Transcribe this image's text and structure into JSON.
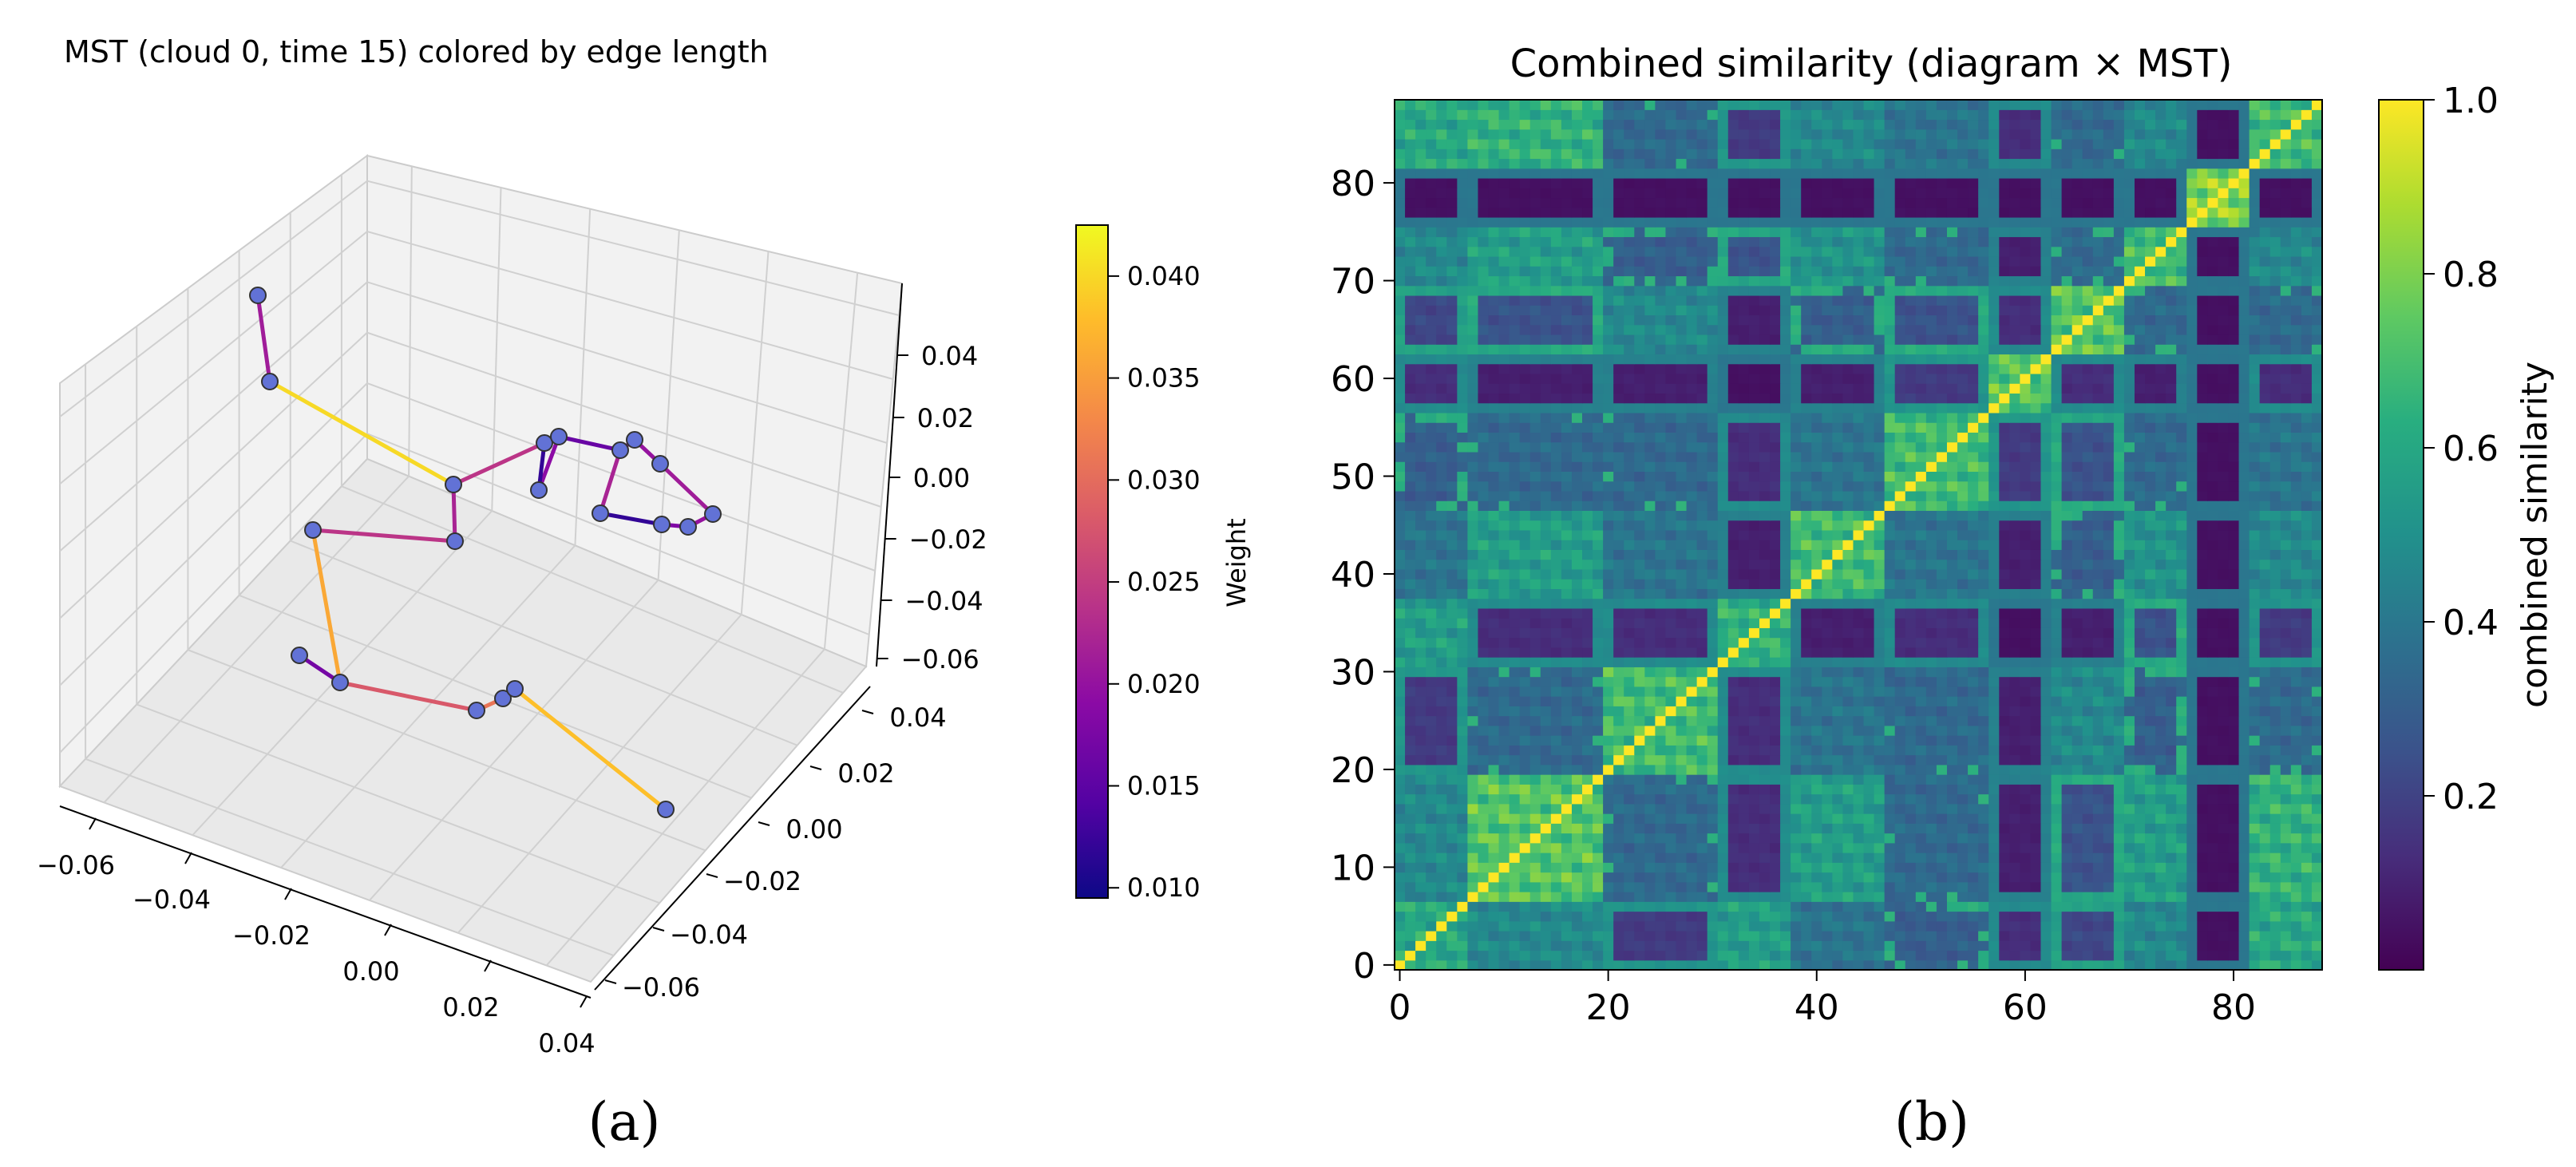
{
  "panels": {
    "a": {
      "label": "(a)",
      "chart_data": {
        "type": "scatter",
        "title": "MST (cloud 0, time 15) colored by edge length",
        "x_ticks": [
          "−0.06",
          "−0.04",
          "−0.02",
          "0.00",
          "0.02",
          "0.04"
        ],
        "y_ticks": [
          "−0.06",
          "−0.04",
          "−0.02",
          "0.00",
          "0.02",
          "0.04"
        ],
        "z_ticks": [
          "−0.06",
          "−0.04",
          "−0.02",
          "0.00",
          "0.02",
          "0.04"
        ],
        "colorbar": {
          "label": "Weight",
          "colormap": "plasma",
          "range": [
            0.0095,
            0.0425
          ],
          "ticks": [
            "0.010",
            "0.015",
            "0.020",
            "0.025",
            "0.030",
            "0.035",
            "0.040"
          ],
          "tick_values": [
            0.01,
            0.015,
            0.02,
            0.025,
            0.03,
            0.035,
            0.04
          ]
        },
        "node_color": "#6272d6",
        "grid": true
      }
    },
    "b": {
      "label": "(b)",
      "chart_data": {
        "type": "heatmap",
        "title": "Combined similarity (diagram × MST)",
        "matrix_size": 89,
        "x_ticks": [
          "0",
          "20",
          "40",
          "60",
          "80"
        ],
        "x_tick_values": [
          0,
          20,
          40,
          60,
          80
        ],
        "y_ticks": [
          "0",
          "10",
          "20",
          "30",
          "40",
          "50",
          "60",
          "70",
          "80"
        ],
        "y_tick_values": [
          0,
          10,
          20,
          30,
          40,
          50,
          60,
          70,
          80
        ],
        "xlim": [
          -0.5,
          88.5
        ],
        "ylim": [
          -0.5,
          88.5
        ],
        "colormap": "viridis",
        "colorbar": {
          "label": "combined similarity",
          "range": [
            0.0,
            1.0
          ],
          "ticks": [
            "0.2",
            "0.4",
            "0.6",
            "0.8",
            "1.0"
          ],
          "tick_values": [
            0.2,
            0.4,
            0.6,
            0.8,
            1.0
          ]
        },
        "diagonal_value": 1.0,
        "segments": [
          [
            0,
            6
          ],
          [
            7,
            19
          ],
          [
            20,
            30
          ],
          [
            31,
            37
          ],
          [
            38,
            46
          ],
          [
            47,
            56
          ],
          [
            57,
            62
          ],
          [
            63,
            69
          ],
          [
            70,
            75
          ],
          [
            76,
            81
          ],
          [
            82,
            88
          ]
        ],
        "segment_similarity": [
          [
            0.7,
            0.55,
            0.2,
            0.65,
            0.45,
            0.35,
            0.15,
            0.25,
            0.55,
            0.05,
            0.7
          ],
          [
            0.55,
            0.85,
            0.4,
            0.15,
            0.65,
            0.4,
            0.1,
            0.3,
            0.65,
            0.05,
            0.75
          ],
          [
            0.2,
            0.4,
            0.8,
            0.15,
            0.45,
            0.4,
            0.1,
            0.55,
            0.35,
            0.05,
            0.4
          ],
          [
            0.65,
            0.15,
            0.15,
            0.75,
            0.1,
            0.15,
            0.05,
            0.1,
            0.3,
            0.05,
            0.2
          ],
          [
            0.45,
            0.65,
            0.45,
            0.1,
            0.8,
            0.45,
            0.1,
            0.35,
            0.6,
            0.05,
            0.55
          ],
          [
            0.35,
            0.4,
            0.4,
            0.15,
            0.45,
            0.8,
            0.2,
            0.3,
            0.4,
            0.05,
            0.45
          ],
          [
            0.15,
            0.1,
            0.1,
            0.05,
            0.1,
            0.2,
            0.85,
            0.15,
            0.1,
            0.05,
            0.15
          ],
          [
            0.25,
            0.3,
            0.55,
            0.1,
            0.35,
            0.3,
            0.15,
            0.85,
            0.4,
            0.05,
            0.4
          ],
          [
            0.55,
            0.65,
            0.35,
            0.3,
            0.6,
            0.4,
            0.1,
            0.4,
            0.8,
            0.05,
            0.55
          ],
          [
            0.05,
            0.05,
            0.05,
            0.05,
            0.05,
            0.05,
            0.05,
            0.05,
            0.05,
            0.95,
            0.05
          ],
          [
            0.7,
            0.75,
            0.4,
            0.2,
            0.55,
            0.45,
            0.15,
            0.4,
            0.55,
            0.05,
            0.8
          ]
        ]
      }
    }
  }
}
